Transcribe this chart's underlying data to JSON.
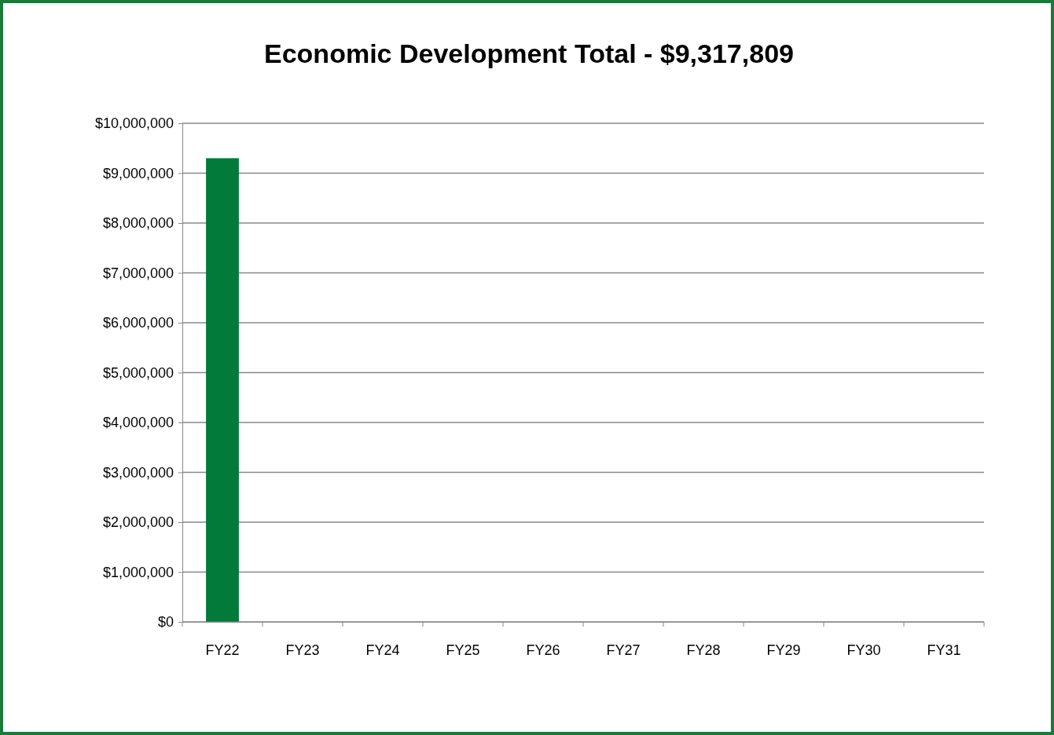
{
  "chart_data": {
    "type": "bar",
    "title": "Economic Development Total - $9,317,809",
    "categories": [
      "FY22",
      "FY23",
      "FY24",
      "FY25",
      "FY26",
      "FY27",
      "FY28",
      "FY29",
      "FY30",
      "FY31"
    ],
    "values": [
      9300000,
      0,
      0,
      0,
      0,
      0,
      0,
      0,
      0,
      0
    ],
    "color": "#027a3a",
    "ylim": [
      0,
      10000000
    ],
    "yticks": [
      {
        "value": 0,
        "label": "$0"
      },
      {
        "value": 1000000,
        "label": "$1,000,000"
      },
      {
        "value": 2000000,
        "label": "$2,000,000"
      },
      {
        "value": 3000000,
        "label": "$3,000,000"
      },
      {
        "value": 4000000,
        "label": "$4,000,000"
      },
      {
        "value": 5000000,
        "label": "$5,000,000"
      },
      {
        "value": 6000000,
        "label": "$6,000,000"
      },
      {
        "value": 7000000,
        "label": "$7,000,000"
      },
      {
        "value": 8000000,
        "label": "$8,000,000"
      },
      {
        "value": 9000000,
        "label": "$9,000,000"
      },
      {
        "value": 10000000,
        "label": "$10,000,000"
      }
    ],
    "grid": "y"
  }
}
